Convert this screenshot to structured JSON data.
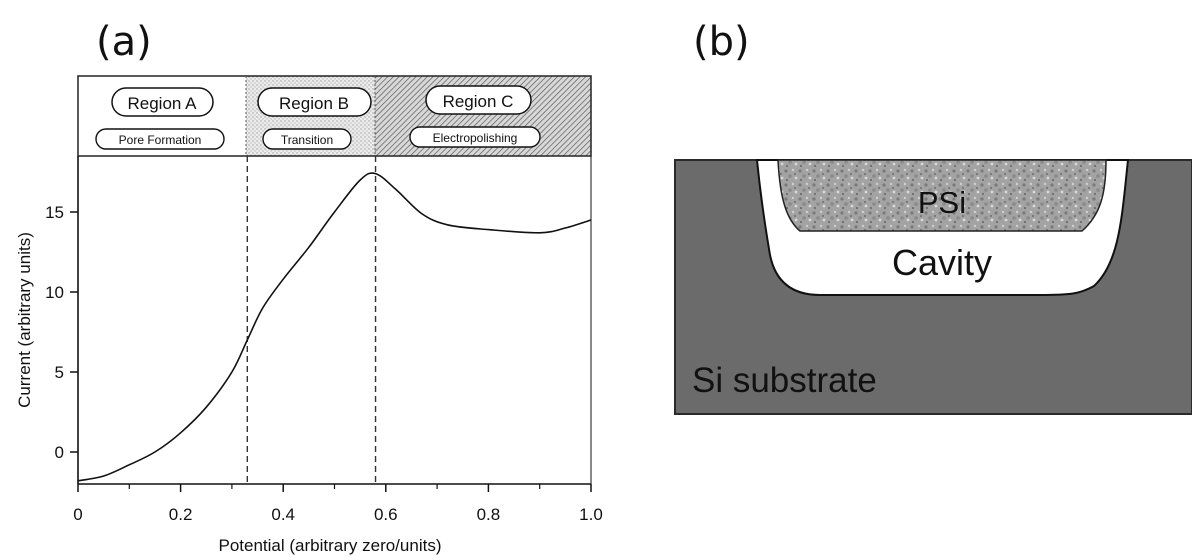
{
  "figure": {
    "panel_a_label": "(a)",
    "panel_b_label": "(b)"
  },
  "chart_data": {
    "type": "line",
    "xlabel": "Potential  (arbitrary zero/units)",
    "ylabel": "Current (arbitrary units)",
    "xlim": [
      0,
      1.0
    ],
    "ylim": [
      -2,
      18.5
    ],
    "x_ticks": [
      "0",
      "0.2",
      "0.4",
      "0.6",
      "0.8",
      "1.0"
    ],
    "x_tick_values": [
      0,
      0.2,
      0.4,
      0.6,
      0.8,
      1.0
    ],
    "y_ticks": [
      "0",
      "5",
      "10",
      "15"
    ],
    "y_tick_values": [
      0,
      5,
      10,
      15
    ],
    "grid": false,
    "series": [
      {
        "x": [
          0,
          0.05,
          0.1,
          0.15,
          0.2,
          0.25,
          0.3,
          0.33,
          0.36,
          0.4,
          0.45,
          0.5,
          0.55,
          0.58,
          0.62,
          0.67,
          0.72,
          0.8,
          0.9,
          0.95,
          1.0
        ],
        "y": [
          -1.8,
          -1.5,
          -0.8,
          0.0,
          1.2,
          2.8,
          5.0,
          7.0,
          9.0,
          10.8,
          12.8,
          15.0,
          17.0,
          17.4,
          16.4,
          14.9,
          14.2,
          13.9,
          13.7,
          14.0,
          14.5
        ]
      }
    ],
    "dividers_x": [
      0.33,
      0.58
    ],
    "regions": [
      {
        "name": "Region A",
        "sub": "Pore Formation",
        "pattern": "none"
      },
      {
        "name": "Region B",
        "sub": "Transition",
        "pattern": "light"
      },
      {
        "name": "Region C",
        "sub": "Electropolishing",
        "pattern": "dense"
      }
    ]
  },
  "diagram": {
    "labels": {
      "psi": "PSi",
      "cavity": "Cavity",
      "substrate": "Si substrate"
    },
    "colors": {
      "substrate": "#6b6b6b",
      "cavity": "#ffffff",
      "psi": "#9a9a9a"
    }
  }
}
